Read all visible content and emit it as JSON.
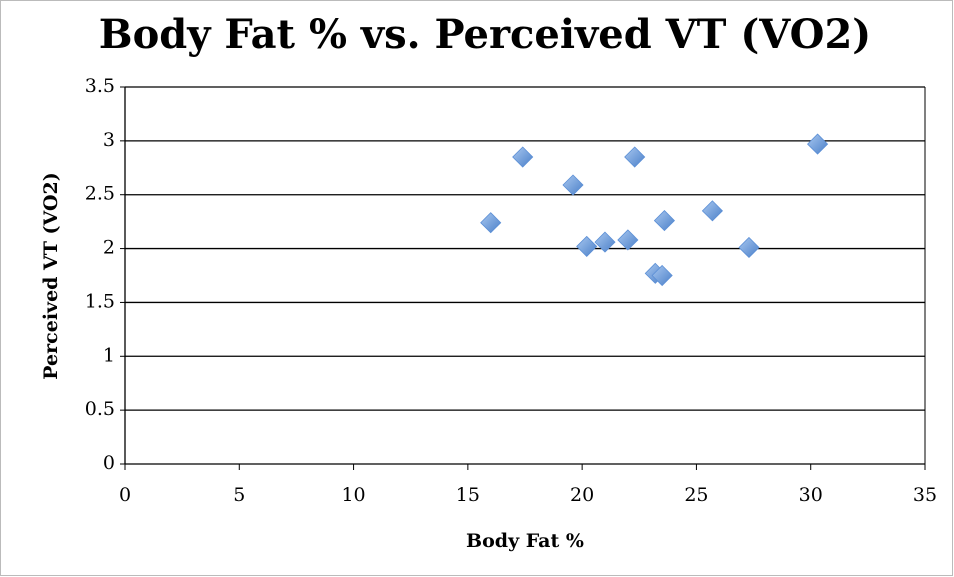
{
  "chart_data": {
    "type": "scatter",
    "title": "Body Fat % vs. Perceived VT (VO2)",
    "x_label": "Body Fat %",
    "y_label": "Perceived VT (VO2)",
    "series": [
      {
        "color": "#5b8fd6",
        "x": [
          16.0,
          17.4,
          19.6,
          20.2,
          21.0,
          22.0,
          22.3,
          23.2,
          23.5,
          23.6,
          25.7,
          27.3,
          30.3
        ],
        "values": [
          2.24,
          2.85,
          2.59,
          2.02,
          2.06,
          2.08,
          2.85,
          1.77,
          1.75,
          2.26,
          2.35,
          2.01,
          2.97
        ]
      }
    ],
    "xlim": [
      0,
      35
    ],
    "xticks": [
      0,
      5,
      10,
      15,
      20,
      25,
      30,
      35
    ],
    "ylim": [
      0,
      3.5
    ],
    "yticks": [
      0,
      0.5,
      1,
      1.5,
      2,
      2.5,
      3,
      3.5
    ],
    "grid": true
  }
}
